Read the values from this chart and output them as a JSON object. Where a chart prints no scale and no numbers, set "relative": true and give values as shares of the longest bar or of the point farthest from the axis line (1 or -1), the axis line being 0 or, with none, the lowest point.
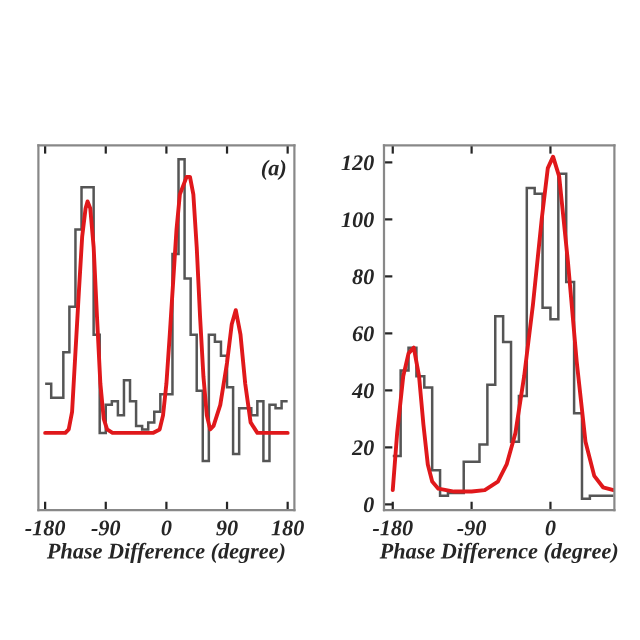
{
  "chart_data": [
    {
      "type": "histogram",
      "xlabel": "Phase Difference (degree)",
      "relative": true,
      "xlim": [
        -190,
        190
      ],
      "xticks": [
        -180,
        -90,
        0,
        90,
        180
      ],
      "tick_labels": "x",
      "grid": false,
      "legend": false,
      "annotations": [
        "(a)"
      ],
      "series": [
        {
          "color": "#555555",
          "bins": [
            -180,
            -171,
            -162,
            -153,
            -144,
            -135,
            -126,
            -117,
            -108,
            -99,
            -90,
            -81,
            -72,
            -63,
            -54,
            -45,
            -36,
            -27,
            -18,
            -9,
            0,
            9,
            18,
            27,
            36,
            45,
            54,
            63,
            72,
            81,
            90,
            99,
            108,
            117,
            126,
            135,
            144,
            153,
            162,
            171,
            180
          ],
          "values": [
            0.36,
            0.32,
            0.32,
            0.45,
            0.58,
            0.8,
            0.92,
            0.92,
            0.5,
            0.22,
            0.3,
            0.31,
            0.27,
            0.37,
            0.31,
            0.24,
            0.23,
            0.25,
            0.28,
            0.33,
            0.33,
            0.73,
            1,
            0.66,
            0.5,
            0.34,
            0.14,
            0.5,
            0.48,
            0.44,
            0.35,
            0.16,
            0.29,
            0.29,
            0.27,
            0.31,
            0.14,
            0.3,
            0.29,
            0.31
          ]
        },
        {
          "type": "line",
          "color": "#e0181b",
          "x": [
            -180,
            -150,
            -145,
            -140,
            -135,
            -130,
            -125,
            -120,
            -117,
            -113,
            -108,
            -103,
            -98,
            -93,
            -88,
            -80,
            -20,
            -10,
            -5,
            0,
            5,
            10,
            15,
            20,
            30,
            35,
            40,
            45,
            50,
            55,
            60,
            65,
            70,
            80,
            90,
            97,
            103,
            110,
            117,
            125,
            135,
            180
          ],
          "values": [
            0.22,
            0.22,
            0.23,
            0.28,
            0.45,
            0.62,
            0.78,
            0.86,
            0.88,
            0.86,
            0.75,
            0.55,
            0.36,
            0.26,
            0.23,
            0.22,
            0.22,
            0.23,
            0.27,
            0.36,
            0.5,
            0.65,
            0.8,
            0.9,
            0.95,
            0.95,
            0.9,
            0.75,
            0.55,
            0.38,
            0.27,
            0.23,
            0.24,
            0.3,
            0.42,
            0.53,
            0.57,
            0.5,
            0.36,
            0.25,
            0.22,
            0.22
          ]
        }
      ]
    },
    {
      "type": "histogram",
      "xlabel": "Phase Difference (degree)",
      "xlim": [
        -190,
        73
      ],
      "xticks": [
        -180,
        -90,
        0
      ],
      "ylim": [
        -2,
        126
      ],
      "yticks": [
        0,
        20,
        40,
        60,
        80,
        100,
        120
      ],
      "grid": false,
      "legend": false,
      "series": [
        {
          "color": "#555555",
          "bins": [
            -180,
            -171,
            -162,
            -153,
            -144,
            -135,
            -126,
            -117,
            -108,
            -99,
            -90,
            -81,
            -72,
            -63,
            -54,
            -45,
            -36,
            -27,
            -18,
            -9,
            0,
            9,
            18,
            27,
            36,
            45,
            54,
            63,
            72
          ],
          "values": [
            17,
            47,
            55,
            45,
            41,
            12,
            3,
            4,
            4,
            15,
            15,
            21,
            42,
            66,
            57,
            22,
            38,
            111,
            109,
            69,
            65,
            116,
            78,
            32,
            2,
            3,
            3,
            3
          ]
        },
        {
          "type": "line",
          "color": "#e0181b",
          "x": [
            -180,
            -175,
            -168,
            -162,
            -156,
            -150,
            -145,
            -140,
            -135,
            -128,
            -110,
            -90,
            -75,
            -60,
            -50,
            -40,
            -30,
            -20,
            -10,
            -3,
            3,
            10,
            20,
            30,
            40,
            50,
            60,
            72
          ],
          "values": [
            5,
            25,
            45,
            53,
            55,
            45,
            28,
            14,
            8,
            5.5,
            4.5,
            4.5,
            5,
            8,
            14,
            25,
            45,
            70,
            100,
            118,
            122,
            115,
            85,
            50,
            22,
            10,
            6,
            5
          ]
        }
      ]
    }
  ]
}
